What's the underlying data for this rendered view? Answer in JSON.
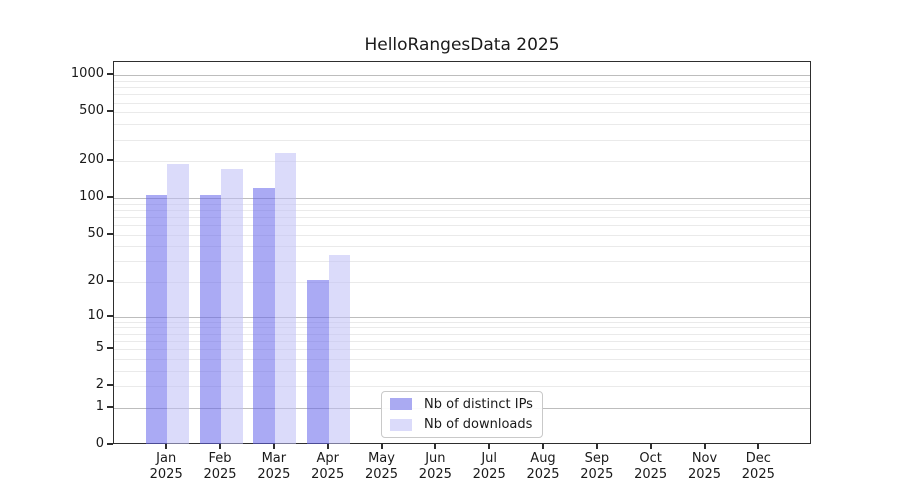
{
  "chart_data": {
    "type": "bar",
    "title": "HelloRangesData 2025",
    "categories": [
      "Jan",
      "Feb",
      "Mar",
      "Apr",
      "May",
      "Jun",
      "Jul",
      "Aug",
      "Sep",
      "Oct",
      "Nov",
      "Dec"
    ],
    "category_subline": "2025",
    "series": [
      {
        "name": "Nb of distinct IPs",
        "color": "#6464eb",
        "alpha": 0.55,
        "swatch_color": "#aaaaf2",
        "values": [
          105,
          105,
          120,
          21,
          0,
          0,
          0,
          0,
          0,
          0,
          0,
          0
        ]
      },
      {
        "name": "Nb of downloads",
        "color": "#bebef5",
        "alpha": 0.55,
        "swatch_color": "#dbdbfa",
        "values": [
          190,
          173,
          235,
          34,
          0,
          0,
          0,
          0,
          0,
          0,
          0,
          0
        ]
      }
    ],
    "yscale": "log1p",
    "ylim": [
      0,
      1280
    ],
    "yticks": [
      0,
      1,
      2,
      5,
      10,
      20,
      50,
      100,
      200,
      500,
      1000
    ],
    "grid": {
      "major_lines": [
        1,
        10,
        100,
        1000
      ],
      "minor_multiples": [
        2,
        3,
        4,
        5,
        6,
        7,
        8,
        9
      ],
      "minor_decades": [
        1,
        10,
        100
      ]
    },
    "legend": {
      "position": "lower center"
    },
    "colors": {
      "major_grid": "#bdbdbd",
      "minor_grid": "#eaeaea",
      "spine": "#2e2e2e",
      "text": "#1a1a1a",
      "background": "#ffffff"
    },
    "xlabel": "",
    "ylabel": ""
  }
}
